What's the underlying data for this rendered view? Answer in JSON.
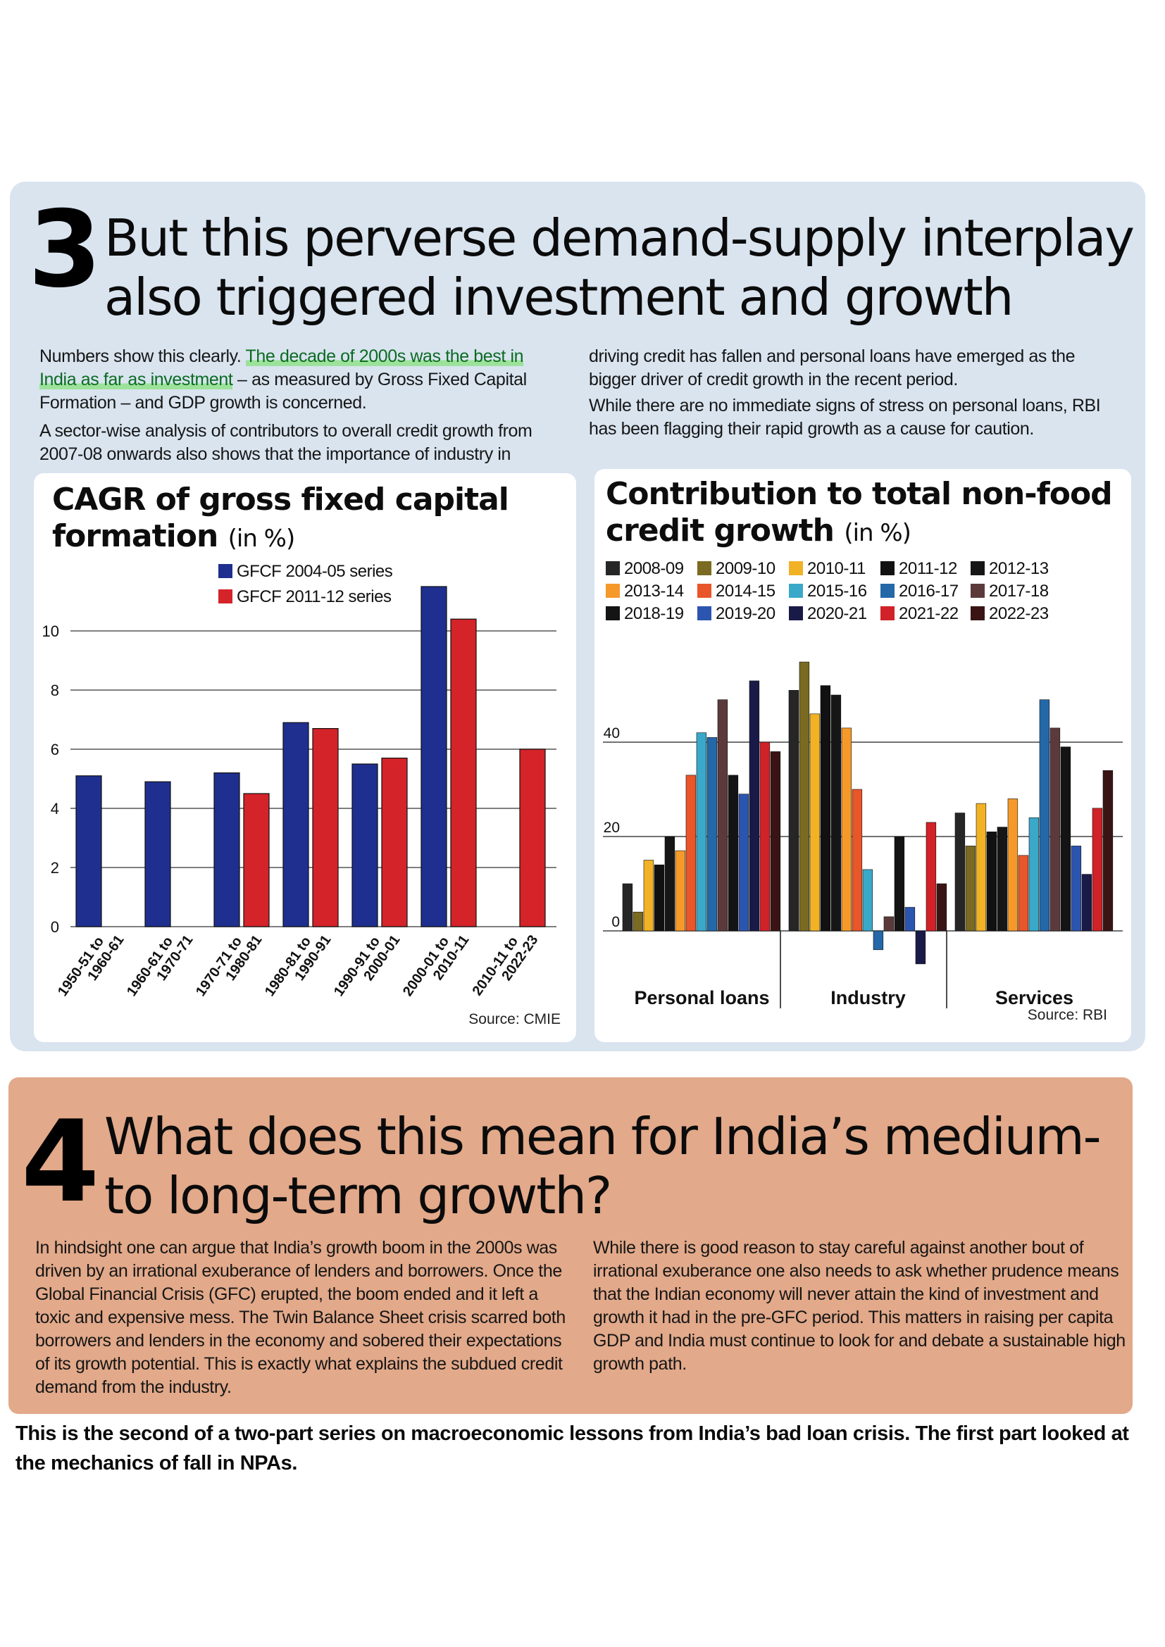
{
  "section3": {
    "number": "3",
    "headline_line1": "But this perverse demand-supply interplay",
    "headline_line2": "also triggered investment and growth",
    "col1_p1_a": "Numbers show this clearly. ",
    "col1_p1_highlight": "The decade of 2000s was the best in India as far as investment",
    "col1_p1_b": " – as measured by Gross Fixed Capital Formation – and GDP growth is concerned.",
    "col1_p2": "A sector-wise analysis of contributors to overall credit growth from 2007-08 onwards also shows that the importance of industry in",
    "col2_p1": "driving credit has fallen and personal loans have emerged as the bigger driver of credit growth in the recent period.",
    "col2_p2": "While there are no immediate signs of stress on personal loans, RBI has been flagging their rapid growth as a cause for caution."
  },
  "section4": {
    "number": "4",
    "headline_line1": "What does this mean for India’s medium-",
    "headline_line2": "to long-term growth?",
    "col1": "In hindsight one can argue that India’s growth boom in the 2000s was driven by an irrational exuberance of lenders and borrowers. Once the Global Financial Crisis (GFC) erupted, the boom ended and it left a toxic and expensive mess. The Twin Balance Sheet crisis scarred both borrowers and lenders in the economy and sobered their expectations of its growth potential. This is exactly what explains the subdued credit demand from the industry.",
    "col2": "While there is good reason to stay careful against another bout of irrational exuberance one also needs to ask whether prudence means that the Indian economy will never attain the kind of investment and growth it had in the pre-GFC period. This matters in raising per capita GDP and India must continue to look for and debate a sustainable high growth path."
  },
  "footer": "This is the second of a two-part series on macroeconomic lessons from India’s bad loan crisis. The first part looked at the mechanics of fall in NPAs.",
  "chart_data": [
    {
      "type": "bar",
      "title": "CAGR of gross fixed capital formation",
      "unit": "(in %)",
      "source": "Source: CMIE",
      "categories": [
        "1950-51 to 1960-61",
        "1960-61 to 1970-71",
        "1970-71 to 1980-81",
        "1980-81 to 1990-91",
        "1990-91 to 2000-01",
        "2000-01 to 2010-11",
        "2010-11 to 2022-23"
      ],
      "series": [
        {
          "name": "GFCF 2004-05 series",
          "color": "#1f2f8f",
          "values": [
            5.1,
            4.9,
            5.2,
            6.9,
            5.5,
            11.5,
            null
          ]
        },
        {
          "name": "GFCF 2011-12 series",
          "color": "#d42329",
          "values": [
            null,
            null,
            4.5,
            6.7,
            5.7,
            10.4,
            6.0
          ]
        }
      ],
      "yticks": [
        0,
        2,
        4,
        6,
        8,
        10
      ],
      "ylim": [
        0,
        12
      ],
      "grid": "horizontal"
    },
    {
      "type": "bar",
      "title": "Contribution to total non-food credit growth",
      "unit": "(in %)",
      "source": "Source: RBI",
      "categories": [
        "Personal loans",
        "Industry",
        "Services"
      ],
      "series": [
        {
          "name": "2008-09",
          "color": "#262626",
          "values": [
            10,
            51,
            25
          ]
        },
        {
          "name": "2009-10",
          "color": "#7a6a22",
          "values": [
            4,
            57,
            18
          ]
        },
        {
          "name": "2010-11",
          "color": "#f2b226",
          "values": [
            15,
            46,
            27
          ]
        },
        {
          "name": "2011-12",
          "color": "#111111",
          "values": [
            14,
            52,
            21
          ]
        },
        {
          "name": "2012-13",
          "color": "#161616",
          "values": [
            20,
            50,
            22
          ]
        },
        {
          "name": "2013-14",
          "color": "#f59a2a",
          "values": [
            17,
            43,
            28
          ]
        },
        {
          "name": "2014-15",
          "color": "#e8562a",
          "values": [
            33,
            30,
            16
          ]
        },
        {
          "name": "2015-16",
          "color": "#3aa8c8",
          "values": [
            42,
            13,
            24
          ]
        },
        {
          "name": "2016-17",
          "color": "#2468a8",
          "values": [
            41,
            -4,
            49
          ]
        },
        {
          "name": "2017-18",
          "color": "#5c3a3c",
          "values": [
            49,
            3,
            43
          ]
        },
        {
          "name": "2018-19",
          "color": "#141414",
          "values": [
            33,
            20,
            39
          ]
        },
        {
          "name": "2019-20",
          "color": "#2c55b0",
          "values": [
            29,
            5,
            18
          ]
        },
        {
          "name": "2020-21",
          "color": "#1a1a48",
          "values": [
            53,
            -7,
            12
          ]
        },
        {
          "name": "2021-22",
          "color": "#d02228",
          "values": [
            40,
            23,
            26
          ]
        },
        {
          "name": "2022-23",
          "color": "#3a1414",
          "values": [
            38,
            10,
            34
          ]
        }
      ],
      "yticks": [
        0,
        20,
        40
      ],
      "ylim": [
        -10,
        58
      ],
      "grid": "horizontal"
    }
  ]
}
